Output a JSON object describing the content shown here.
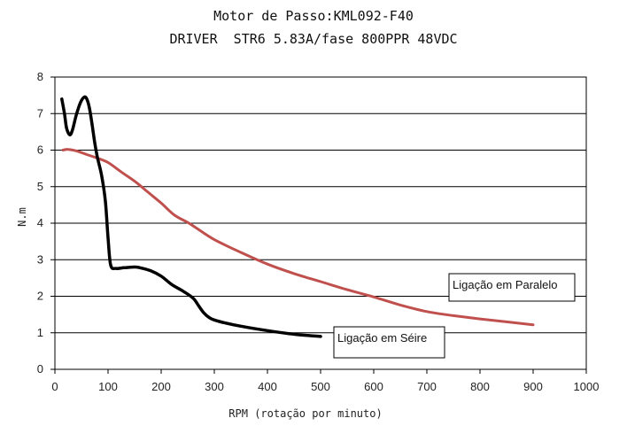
{
  "chart_data": {
    "type": "line",
    "title": "Motor de Passo:KML092-F40",
    "subtitle": "DRIVER  STR6 5.83A/fase 800PPR 48VDC",
    "xlabel": "RPM (rotação por minuto)",
    "ylabel": "N.m",
    "xlim": [
      0,
      1000
    ],
    "ylim": [
      0,
      8
    ],
    "xticks": [
      0,
      100,
      200,
      300,
      400,
      500,
      600,
      700,
      800,
      900,
      1000
    ],
    "yticks": [
      0,
      1,
      2,
      3,
      4,
      5,
      6,
      7,
      8
    ],
    "grid": "horizontal",
    "series": [
      {
        "name": "Ligação em Paralelo",
        "color": "#c0504d",
        "x": [
          15,
          25,
          40,
          60,
          80,
          100,
          125,
          150,
          175,
          200,
          225,
          250,
          265,
          300,
          350,
          400,
          450,
          500,
          550,
          600,
          650,
          700,
          750,
          800,
          850,
          900
        ],
        "y": [
          6.0,
          6.02,
          5.98,
          5.88,
          5.78,
          5.66,
          5.4,
          5.15,
          4.85,
          4.55,
          4.22,
          4.02,
          3.88,
          3.55,
          3.2,
          2.88,
          2.62,
          2.4,
          2.18,
          1.98,
          1.76,
          1.58,
          1.47,
          1.38,
          1.3,
          1.22
        ]
      },
      {
        "name": "Ligação em Séire",
        "color": "#000000",
        "x": [
          13,
          18,
          22,
          28,
          33,
          40,
          48,
          55,
          60,
          65,
          70,
          75,
          80,
          88,
          95,
          100,
          105,
          115,
          130,
          150,
          160,
          180,
          200,
          220,
          240,
          260,
          270,
          280,
          290,
          300,
          320,
          350,
          400,
          450,
          500
        ],
        "y": [
          7.4,
          7.0,
          6.6,
          6.42,
          6.55,
          6.95,
          7.3,
          7.45,
          7.4,
          7.15,
          6.7,
          6.2,
          5.8,
          5.3,
          4.6,
          3.6,
          2.85,
          2.76,
          2.78,
          2.8,
          2.78,
          2.7,
          2.55,
          2.32,
          2.15,
          1.95,
          1.75,
          1.55,
          1.42,
          1.35,
          1.27,
          1.18,
          1.06,
          0.96,
          0.9
        ]
      }
    ],
    "annotations": [
      {
        "text": "Ligação em Paralelo",
        "series": "Ligação em Paralelo"
      },
      {
        "text": "Ligação em Séire",
        "series": "Ligação em Séire"
      }
    ]
  }
}
